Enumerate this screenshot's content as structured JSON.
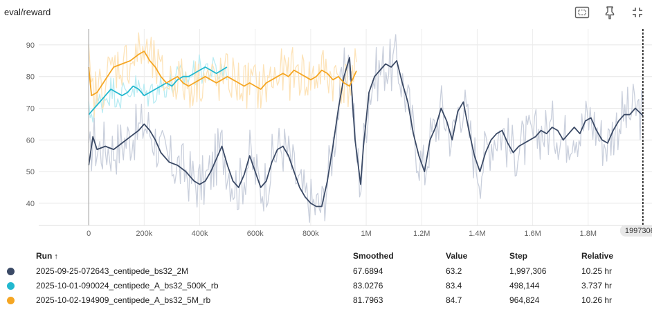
{
  "title": "eval/reward",
  "toolbar": {
    "icons": [
      "fit-domain-icon",
      "pin-icon",
      "collapse-icon"
    ]
  },
  "cursor": {
    "step_label": "1997306",
    "close_glyph": "×",
    "step": 1997306
  },
  "table": {
    "headers": {
      "run": "Run",
      "sort_glyph": "↑",
      "smoothed": "Smoothed",
      "value": "Value",
      "step": "Step",
      "relative": "Relative"
    },
    "rows": [
      {
        "name": "2025-09-25-072643_centipede_bs32_2M",
        "color": "#3b4a66",
        "smoothed": "67.6894",
        "value": "63.2",
        "step": "1,997,306",
        "relative": "10.25 hr"
      },
      {
        "name": "2025-10-01-090024_centipede_A_bs32_500K_rb",
        "color": "#22b8cf",
        "smoothed": "83.0276",
        "value": "83.4",
        "step": "498,144",
        "relative": "3.737 hr"
      },
      {
        "name": "2025-10-02-194909_centipede_A_bs32_5M_rb",
        "color": "#f5a623",
        "smoothed": "81.7963",
        "value": "84.7",
        "step": "964,824",
        "relative": "10.26 hr"
      }
    ]
  },
  "chart_data": {
    "type": "line",
    "title": "eval/reward",
    "xlabel": "",
    "ylabel": "",
    "xlim": [
      -180000,
      2030000
    ],
    "ylim": [
      33,
      95
    ],
    "x_ticks": [
      0,
      200000,
      400000,
      600000,
      800000,
      1000000,
      1200000,
      1400000,
      1600000,
      1800000
    ],
    "x_tick_labels": [
      "0",
      "200k",
      "400k",
      "600k",
      "800k",
      "1M",
      "1.2M",
      "1.4M",
      "1.6M",
      "1.8M"
    ],
    "y_ticks": [
      40,
      50,
      60,
      70,
      80,
      90
    ],
    "y_tick_labels": [
      "40",
      "50",
      "60",
      "70",
      "80",
      "90"
    ],
    "grid": true,
    "series": [
      {
        "name": "2025-09-25-072643_centipede_bs32_2M",
        "color": "#3b4a66",
        "raw_color": "#c9cfdc",
        "points": [
          [
            0,
            52
          ],
          [
            15000,
            61
          ],
          [
            30000,
            57
          ],
          [
            60000,
            58
          ],
          [
            90000,
            57
          ],
          [
            120000,
            59
          ],
          [
            150000,
            61
          ],
          [
            180000,
            63
          ],
          [
            200000,
            65
          ],
          [
            220000,
            63
          ],
          [
            240000,
            60
          ],
          [
            260000,
            56
          ],
          [
            290000,
            53
          ],
          [
            320000,
            52
          ],
          [
            350000,
            50
          ],
          [
            380000,
            47
          ],
          [
            400000,
            46
          ],
          [
            420000,
            47
          ],
          [
            440000,
            50
          ],
          [
            460000,
            54
          ],
          [
            480000,
            58
          ],
          [
            500000,
            52
          ],
          [
            520000,
            47
          ],
          [
            540000,
            45
          ],
          [
            560000,
            49
          ],
          [
            580000,
            55
          ],
          [
            600000,
            50
          ],
          [
            620000,
            45
          ],
          [
            640000,
            47
          ],
          [
            660000,
            53
          ],
          [
            680000,
            57
          ],
          [
            700000,
            58
          ],
          [
            720000,
            55
          ],
          [
            740000,
            50
          ],
          [
            760000,
            45
          ],
          [
            780000,
            42
          ],
          [
            800000,
            40
          ],
          [
            820000,
            39
          ],
          [
            840000,
            39
          ],
          [
            860000,
            47
          ],
          [
            880000,
            58
          ],
          [
            900000,
            70
          ],
          [
            920000,
            80
          ],
          [
            940000,
            86
          ],
          [
            960000,
            60
          ],
          [
            980000,
            46
          ],
          [
            990000,
            58
          ],
          [
            1010000,
            75
          ],
          [
            1030000,
            80
          ],
          [
            1050000,
            82
          ],
          [
            1070000,
            84
          ],
          [
            1090000,
            83
          ],
          [
            1110000,
            85
          ],
          [
            1130000,
            78
          ],
          [
            1150000,
            72
          ],
          [
            1170000,
            62
          ],
          [
            1190000,
            55
          ],
          [
            1210000,
            50
          ],
          [
            1230000,
            60
          ],
          [
            1250000,
            64
          ],
          [
            1270000,
            70
          ],
          [
            1290000,
            66
          ],
          [
            1310000,
            60
          ],
          [
            1330000,
            69
          ],
          [
            1350000,
            72
          ],
          [
            1370000,
            63
          ],
          [
            1390000,
            55
          ],
          [
            1410000,
            50
          ],
          [
            1430000,
            56
          ],
          [
            1450000,
            60
          ],
          [
            1470000,
            62
          ],
          [
            1490000,
            63
          ],
          [
            1510000,
            59
          ],
          [
            1530000,
            56
          ],
          [
            1550000,
            58
          ],
          [
            1570000,
            59
          ],
          [
            1590000,
            60
          ],
          [
            1610000,
            61
          ],
          [
            1630000,
            63
          ],
          [
            1650000,
            62
          ],
          [
            1670000,
            64
          ],
          [
            1690000,
            63
          ],
          [
            1710000,
            60
          ],
          [
            1730000,
            62
          ],
          [
            1750000,
            64
          ],
          [
            1770000,
            62
          ],
          [
            1790000,
            66
          ],
          [
            1810000,
            67
          ],
          [
            1830000,
            63
          ],
          [
            1850000,
            60
          ],
          [
            1870000,
            59
          ],
          [
            1890000,
            63
          ],
          [
            1910000,
            66
          ],
          [
            1930000,
            68
          ],
          [
            1950000,
            68
          ],
          [
            1970000,
            70
          ],
          [
            1997306,
            67.7
          ]
        ]
      },
      {
        "name": "2025-10-01-090024_centipede_A_bs32_500K_rb",
        "color": "#22b8cf",
        "raw_color": "#b9ecf3",
        "points": [
          [
            0,
            68
          ],
          [
            20000,
            70
          ],
          [
            40000,
            72
          ],
          [
            60000,
            74
          ],
          [
            80000,
            76
          ],
          [
            100000,
            75
          ],
          [
            120000,
            74
          ],
          [
            140000,
            75
          ],
          [
            160000,
            77
          ],
          [
            180000,
            76
          ],
          [
            200000,
            74
          ],
          [
            220000,
            75
          ],
          [
            240000,
            76
          ],
          [
            260000,
            77
          ],
          [
            280000,
            78
          ],
          [
            300000,
            77
          ],
          [
            320000,
            79
          ],
          [
            340000,
            80
          ],
          [
            360000,
            80
          ],
          [
            380000,
            81
          ],
          [
            400000,
            82
          ],
          [
            420000,
            83
          ],
          [
            440000,
            82
          ],
          [
            460000,
            81
          ],
          [
            480000,
            82
          ],
          [
            498144,
            83
          ]
        ]
      },
      {
        "name": "2025-10-02-194909_centipede_A_bs32_5M_rb",
        "color": "#f5a623",
        "raw_color": "#fde3b8",
        "points": [
          [
            0,
            83
          ],
          [
            10000,
            74
          ],
          [
            30000,
            75
          ],
          [
            60000,
            79
          ],
          [
            90000,
            83
          ],
          [
            120000,
            84
          ],
          [
            150000,
            85
          ],
          [
            180000,
            87
          ],
          [
            200000,
            88
          ],
          [
            220000,
            85
          ],
          [
            240000,
            83
          ],
          [
            260000,
            80
          ],
          [
            280000,
            78
          ],
          [
            300000,
            79
          ],
          [
            320000,
            80
          ],
          [
            340000,
            78
          ],
          [
            360000,
            77
          ],
          [
            380000,
            78
          ],
          [
            400000,
            79
          ],
          [
            420000,
            80
          ],
          [
            440000,
            79
          ],
          [
            460000,
            78
          ],
          [
            480000,
            79
          ],
          [
            500000,
            80
          ],
          [
            520000,
            79
          ],
          [
            540000,
            78
          ],
          [
            560000,
            77
          ],
          [
            580000,
            78
          ],
          [
            600000,
            77
          ],
          [
            620000,
            76
          ],
          [
            640000,
            78
          ],
          [
            660000,
            79
          ],
          [
            680000,
            80
          ],
          [
            700000,
            81
          ],
          [
            720000,
            80
          ],
          [
            740000,
            82
          ],
          [
            760000,
            81
          ],
          [
            780000,
            80
          ],
          [
            800000,
            79
          ],
          [
            820000,
            80
          ],
          [
            840000,
            82
          ],
          [
            860000,
            81
          ],
          [
            880000,
            79
          ],
          [
            900000,
            80
          ],
          [
            920000,
            78
          ],
          [
            940000,
            77
          ],
          [
            964824,
            81.8
          ]
        ]
      }
    ]
  }
}
